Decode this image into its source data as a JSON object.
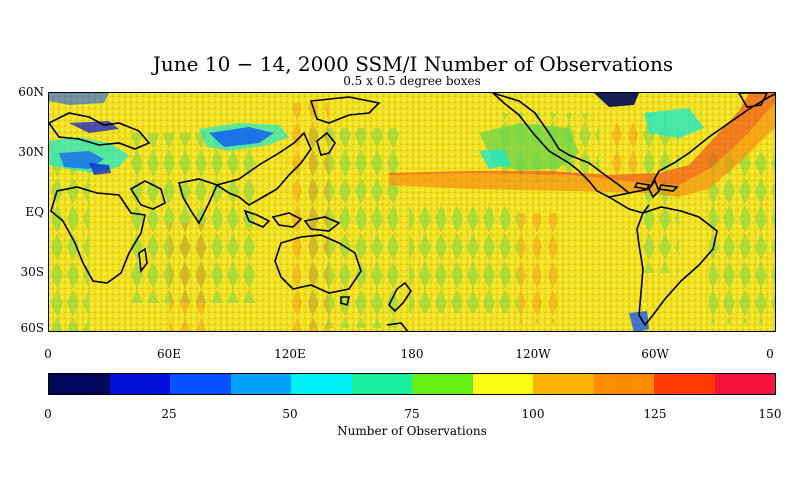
{
  "title": "June 10 − 14, 2000 SSM/I Number of Observations",
  "subtitle": "0.5 x 0.5 degree boxes",
  "lat_labels": [
    "60N",
    "30N",
    "EQ",
    "30S",
    "60S"
  ],
  "lon_labels": [
    "0",
    "60E",
    "120E",
    "180",
    "120W",
    "60W",
    "0"
  ],
  "colorbar": {
    "title": "Number of Observations",
    "tick_labels": [
      "0",
      "25",
      "50",
      "75",
      "100",
      "125",
      "150"
    ],
    "colors": [
      "#000a5a",
      "#0010d8",
      "#0a50ff",
      "#00a0f5",
      "#00f0f8",
      "#14f09c",
      "#64f014",
      "#fafa14",
      "#fab400",
      "#ff8c00",
      "#ff3c00",
      "#f5123c"
    ]
  },
  "map_colors": {
    "background": "#f2df1e",
    "green_band": "#7cd83e",
    "cyan_patch": "#20e8c8",
    "blue_patch": "#1a4cf0",
    "orange_band": "#f59010",
    "red_band": "#f0481a",
    "land_outline": "#000000"
  }
}
